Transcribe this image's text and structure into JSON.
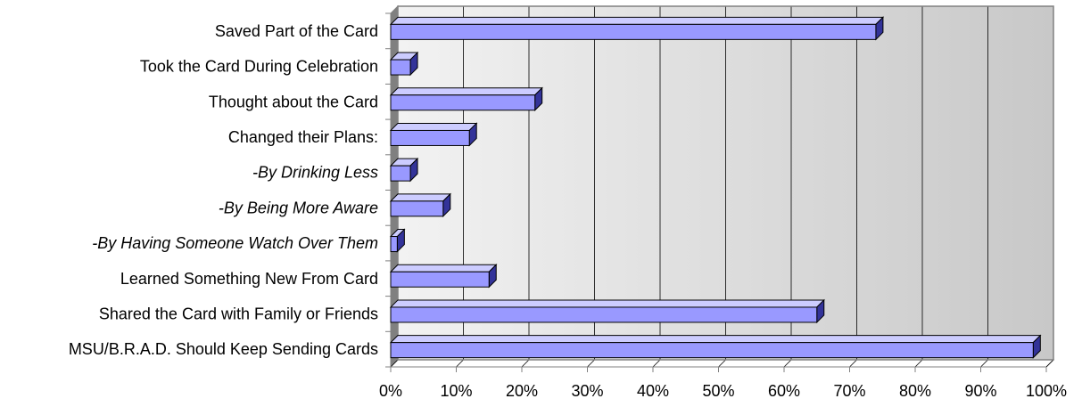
{
  "chart_data": {
    "type": "bar",
    "orientation": "horizontal",
    "categories": [
      "Saved Part of the Card",
      "Took the Card During Celebration",
      "Thought about the Card",
      "Changed their Plans:",
      "-By Drinking Less",
      "-By Being More Aware",
      "-By Having Someone Watch Over Them",
      "Learned Something New From Card",
      "Shared the Card with Family or Friends",
      "MSU/B.R.A.D. Should Keep Sending Cards"
    ],
    "italic": [
      false,
      false,
      false,
      false,
      true,
      true,
      true,
      false,
      false,
      false
    ],
    "values": [
      74,
      3,
      22,
      12,
      3,
      8,
      1,
      15,
      65,
      98
    ],
    "unit": "%",
    "xlim": [
      0,
      100
    ],
    "xticks": [
      0,
      10,
      20,
      30,
      40,
      50,
      60,
      70,
      80,
      90,
      100
    ],
    "xtick_labels": [
      "0%",
      "10%",
      "20%",
      "30%",
      "40%",
      "50%",
      "60%",
      "70%",
      "80%",
      "90%",
      "100%"
    ],
    "grid": true,
    "legend": false,
    "style": "3d",
    "colors": {
      "bar_face": "#9999ff",
      "bar_top": "#ccccff",
      "bar_side": "#333399",
      "bar_stroke": "#000000",
      "wall_light": "#f2f2f2",
      "wall_dark": "#c8c8c8",
      "left_wall": "#808080",
      "gridline": "#000000",
      "border": "#808080"
    }
  }
}
